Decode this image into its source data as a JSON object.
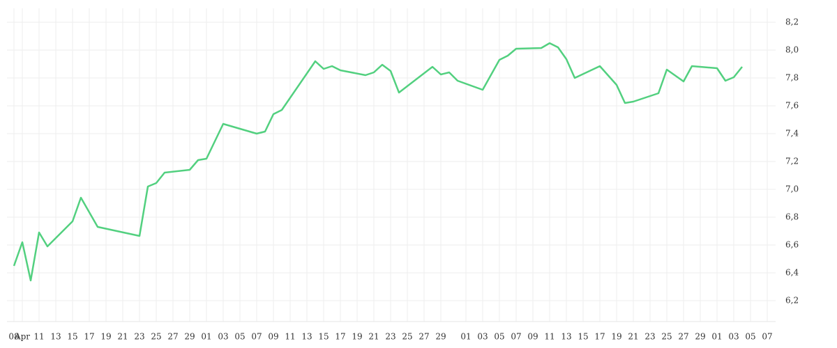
{
  "chart_data": {
    "type": "line",
    "x": [
      "04-08",
      "04-09",
      "04-10",
      "04-11",
      "04-12",
      "04-15",
      "04-16",
      "04-18",
      "04-23",
      "04-24",
      "04-25",
      "04-26",
      "04-29",
      "04-30",
      "05-01",
      "05-03",
      "05-07",
      "05-08",
      "05-09",
      "05-10",
      "05-14",
      "05-15",
      "05-16",
      "05-17",
      "05-20",
      "05-21",
      "05-22",
      "05-23",
      "05-24",
      "05-28",
      "05-29",
      "05-30",
      "05-31",
      "06-03",
      "06-05",
      "06-06",
      "06-07",
      "06-10",
      "06-11",
      "06-12",
      "06-13",
      "06-14",
      "06-17",
      "06-19",
      "06-20",
      "06-21",
      "06-24",
      "06-25",
      "06-27",
      "06-28",
      "07-01",
      "07-02",
      "07-03",
      "07-04"
    ],
    "series": [
      {
        "color": "#52d07f",
        "values": [
          6.45,
          6.62,
          6.345,
          6.69,
          6.59,
          6.77,
          6.94,
          6.73,
          6.665,
          7.02,
          7.045,
          7.12,
          7.14,
          7.21,
          7.22,
          7.47,
          7.4,
          7.415,
          7.54,
          7.57,
          7.92,
          7.865,
          7.885,
          7.855,
          7.82,
          7.84,
          7.895,
          7.85,
          7.695,
          7.88,
          7.825,
          7.84,
          7.78,
          7.715,
          7.93,
          7.96,
          8.01,
          8.015,
          8.05,
          8.02,
          7.935,
          7.8,
          7.885,
          7.75,
          7.62,
          7.63,
          7.69,
          7.86,
          7.775,
          7.885,
          7.87,
          7.78,
          7.805,
          7.88
        ]
      }
    ],
    "xlim": [
      "04-08",
      "07-07"
    ],
    "xticks": [
      {
        "value": "04-08",
        "label": "08"
      },
      {
        "value": "04-09",
        "label": "Apr"
      },
      {
        "value": "04-11",
        "label": "11"
      },
      {
        "value": "04-13",
        "label": "13"
      },
      {
        "value": "04-15",
        "label": "15"
      },
      {
        "value": "04-17",
        "label": "17"
      },
      {
        "value": "04-19",
        "label": "19"
      },
      {
        "value": "04-21",
        "label": "21"
      },
      {
        "value": "04-23",
        "label": "23"
      },
      {
        "value": "04-25",
        "label": "25"
      },
      {
        "value": "04-27",
        "label": "27"
      },
      {
        "value": "04-29",
        "label": "29"
      },
      {
        "value": "05-01",
        "label": "01"
      },
      {
        "value": "05-03",
        "label": "03"
      },
      {
        "value": "05-05",
        "label": "05"
      },
      {
        "value": "05-07",
        "label": "07"
      },
      {
        "value": "05-09",
        "label": "09"
      },
      {
        "value": "05-11",
        "label": "11"
      },
      {
        "value": "05-13",
        "label": "13"
      },
      {
        "value": "05-15",
        "label": "15"
      },
      {
        "value": "05-17",
        "label": "17"
      },
      {
        "value": "05-19",
        "label": "19"
      },
      {
        "value": "05-21",
        "label": "21"
      },
      {
        "value": "05-23",
        "label": "23"
      },
      {
        "value": "05-25",
        "label": "25"
      },
      {
        "value": "05-27",
        "label": "27"
      },
      {
        "value": "05-29",
        "label": "29"
      },
      {
        "value": "06-01",
        "label": "01"
      },
      {
        "value": "06-03",
        "label": "03"
      },
      {
        "value": "06-05",
        "label": "05"
      },
      {
        "value": "06-07",
        "label": "07"
      },
      {
        "value": "06-09",
        "label": "09"
      },
      {
        "value": "06-11",
        "label": "11"
      },
      {
        "value": "06-13",
        "label": "13"
      },
      {
        "value": "06-15",
        "label": "15"
      },
      {
        "value": "06-17",
        "label": "17"
      },
      {
        "value": "06-19",
        "label": "19"
      },
      {
        "value": "06-21",
        "label": "21"
      },
      {
        "value": "06-23",
        "label": "23"
      },
      {
        "value": "06-25",
        "label": "25"
      },
      {
        "value": "06-27",
        "label": "27"
      },
      {
        "value": "06-29",
        "label": "29"
      },
      {
        "value": "07-01",
        "label": "01"
      },
      {
        "value": "07-03",
        "label": "03"
      },
      {
        "value": "07-05",
        "label": "05"
      },
      {
        "value": "07-07",
        "label": "07"
      }
    ],
    "ylim": [
      6.05,
      8.3
    ],
    "yticks": [
      {
        "value": 6.2,
        "label": "6,2"
      },
      {
        "value": 6.4,
        "label": "6,4"
      },
      {
        "value": 6.6,
        "label": "6,6"
      },
      {
        "value": 6.8,
        "label": "6,8"
      },
      {
        "value": 7.0,
        "label": "7,0"
      },
      {
        "value": 7.2,
        "label": "7,2"
      },
      {
        "value": 7.4,
        "label": "7,4"
      },
      {
        "value": 7.6,
        "label": "7,6"
      },
      {
        "value": 7.8,
        "label": "7,8"
      },
      {
        "value": 8.0,
        "label": "8,0"
      },
      {
        "value": 8.2,
        "label": "8,2"
      }
    ],
    "grid": true
  }
}
